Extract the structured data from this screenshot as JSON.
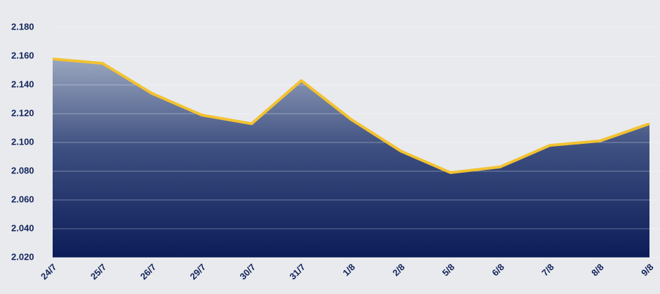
{
  "chart_data": {
    "type": "area",
    "categories": [
      "24/7",
      "25/7",
      "26/7",
      "29/7",
      "30/7",
      "31/7",
      "1/8",
      "2/8",
      "5/8",
      "6/8",
      "7/8",
      "8/8",
      "9/8"
    ],
    "values": [
      2158,
      2155,
      2134,
      2119,
      2113,
      2143,
      2116,
      2094,
      2079,
      2083,
      2098,
      2101,
      2113
    ],
    "color": "#f2c230",
    "ylim": [
      2020,
      2199
    ],
    "yticks": [
      {
        "value": 2020,
        "label": "2.020"
      },
      {
        "value": 2040,
        "label": "2.040"
      },
      {
        "value": 2060,
        "label": "2.060"
      },
      {
        "value": 2080,
        "label": "2.080"
      },
      {
        "value": 2100,
        "label": "2.100"
      },
      {
        "value": 2120,
        "label": "2.120"
      },
      {
        "value": 2140,
        "label": "2.140"
      },
      {
        "value": 2160,
        "label": "2.160"
      },
      {
        "value": 2180,
        "label": "2.180"
      }
    ],
    "grid": true
  }
}
